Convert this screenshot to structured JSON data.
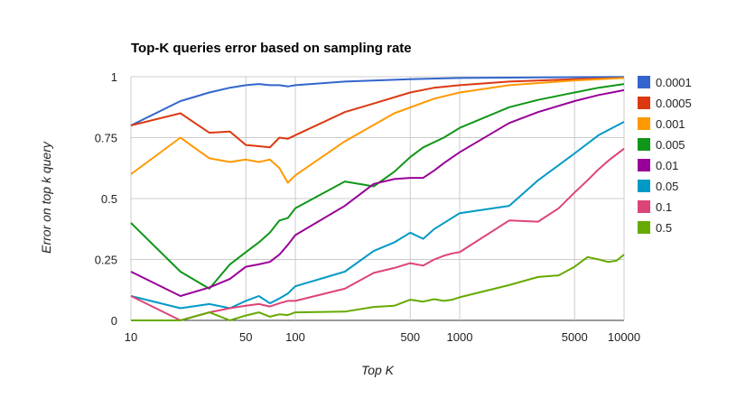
{
  "chart_data": {
    "type": "line",
    "title": "Top-K queries error based on sampling rate",
    "xlabel": "Top K",
    "ylabel": "Error on top k query",
    "x_scale": "log",
    "xlim": [
      10,
      10000
    ],
    "ylim": [
      0,
      1
    ],
    "x_ticks": [
      10,
      50,
      100,
      500,
      1000,
      5000,
      10000
    ],
    "x_tick_labels": [
      "10",
      "50",
      "100",
      "500",
      "1000",
      "5000",
      "10000"
    ],
    "y_ticks": [
      0,
      0.25,
      0.5,
      0.75,
      1
    ],
    "y_tick_labels": [
      "0",
      "0.25",
      "0.5",
      "0.75",
      "1"
    ],
    "grid": true,
    "legend_position": "right",
    "series": [
      {
        "name": "0.0001",
        "color": "#3366cc",
        "x": [
          10,
          20,
          30,
          40,
          50,
          60,
          70,
          80,
          90,
          100,
          200,
          500,
          1000,
          5000,
          10000
        ],
        "y": [
          0.8,
          0.9,
          0.935,
          0.955,
          0.965,
          0.97,
          0.965,
          0.965,
          0.96,
          0.965,
          0.98,
          0.99,
          0.995,
          0.998,
          0.999
        ]
      },
      {
        "name": "0.0005",
        "color": "#dc3912",
        "x": [
          10,
          20,
          30,
          40,
          50,
          60,
          70,
          80,
          90,
          100,
          200,
          300,
          500,
          700,
          1000,
          2000,
          5000,
          10000
        ],
        "y": [
          0.8,
          0.85,
          0.77,
          0.775,
          0.72,
          0.715,
          0.71,
          0.75,
          0.745,
          0.76,
          0.855,
          0.89,
          0.935,
          0.955,
          0.965,
          0.98,
          0.99,
          0.995
        ]
      },
      {
        "name": "0.001",
        "color": "#ff9900",
        "x": [
          10,
          20,
          30,
          40,
          50,
          60,
          70,
          80,
          90,
          100,
          200,
          400,
          700,
          1000,
          2000,
          5000,
          10000
        ],
        "y": [
          0.6,
          0.75,
          0.665,
          0.65,
          0.66,
          0.65,
          0.66,
          0.625,
          0.565,
          0.595,
          0.735,
          0.85,
          0.91,
          0.935,
          0.965,
          0.985,
          0.995
        ]
      },
      {
        "name": "0.005",
        "color": "#109618",
        "x": [
          10,
          20,
          30,
          40,
          50,
          60,
          70,
          80,
          90,
          100,
          200,
          300,
          400,
          500,
          600,
          800,
          1000,
          2000,
          3000,
          5000,
          7000,
          10000
        ],
        "y": [
          0.4,
          0.2,
          0.13,
          0.23,
          0.28,
          0.32,
          0.36,
          0.41,
          0.42,
          0.46,
          0.57,
          0.55,
          0.61,
          0.67,
          0.71,
          0.75,
          0.79,
          0.875,
          0.905,
          0.935,
          0.955,
          0.97
        ]
      },
      {
        "name": "0.01",
        "color": "#990099",
        "x": [
          10,
          20,
          30,
          40,
          50,
          60,
          70,
          80,
          90,
          100,
          200,
          300,
          400,
          500,
          600,
          700,
          800,
          1000,
          2000,
          3000,
          5000,
          7000,
          10000
        ],
        "y": [
          0.2,
          0.1,
          0.135,
          0.17,
          0.22,
          0.23,
          0.24,
          0.27,
          0.31,
          0.35,
          0.47,
          0.56,
          0.58,
          0.585,
          0.585,
          0.615,
          0.645,
          0.69,
          0.81,
          0.855,
          0.9,
          0.925,
          0.945
        ]
      },
      {
        "name": "0.05",
        "color": "#0099c6",
        "x": [
          10,
          20,
          30,
          40,
          50,
          60,
          70,
          80,
          90,
          100,
          200,
          300,
          400,
          500,
          600,
          700,
          1000,
          2000,
          3000,
          5000,
          7000,
          10000
        ],
        "y": [
          0.1,
          0.05,
          0.067,
          0.05,
          0.08,
          0.1,
          0.07,
          0.09,
          0.11,
          0.14,
          0.2,
          0.285,
          0.32,
          0.36,
          0.335,
          0.375,
          0.44,
          0.47,
          0.575,
          0.685,
          0.76,
          0.815
        ]
      },
      {
        "name": "0.1",
        "color": "#dd4477",
        "x": [
          10,
          20,
          30,
          40,
          50,
          60,
          70,
          80,
          90,
          100,
          200,
          300,
          400,
          500,
          600,
          700,
          800,
          900,
          1000,
          2000,
          3000,
          4000,
          5000,
          6000,
          7000,
          8000,
          10000
        ],
        "y": [
          0.1,
          0.0,
          0.033,
          0.05,
          0.06,
          0.067,
          0.057,
          0.07,
          0.08,
          0.08,
          0.13,
          0.195,
          0.215,
          0.235,
          0.225,
          0.25,
          0.265,
          0.275,
          0.28,
          0.41,
          0.405,
          0.46,
          0.525,
          0.575,
          0.62,
          0.655,
          0.705
        ]
      },
      {
        "name": "0.5",
        "color": "#66aa00",
        "x": [
          10,
          20,
          30,
          40,
          50,
          60,
          70,
          80,
          90,
          100,
          200,
          300,
          400,
          500,
          600,
          700,
          800,
          900,
          1000,
          2000,
          3000,
          4000,
          5000,
          6000,
          7000,
          8000,
          9000,
          10000
        ],
        "y": [
          0.0,
          0.0,
          0.033,
          0.0,
          0.02,
          0.033,
          0.015,
          0.025,
          0.022,
          0.033,
          0.036,
          0.055,
          0.06,
          0.085,
          0.077,
          0.087,
          0.08,
          0.085,
          0.095,
          0.145,
          0.178,
          0.185,
          0.22,
          0.26,
          0.25,
          0.24,
          0.245,
          0.27
        ]
      }
    ]
  }
}
